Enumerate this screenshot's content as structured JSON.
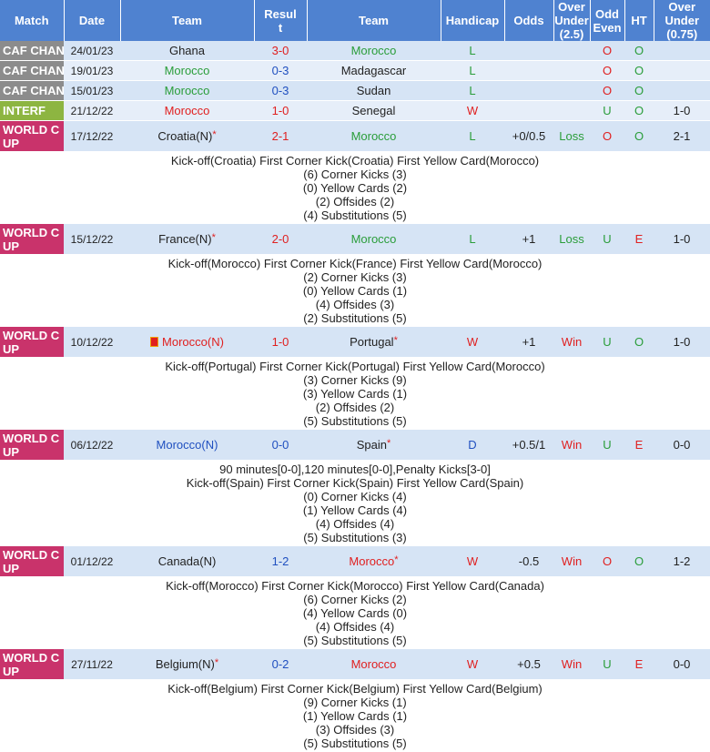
{
  "headers": [
    "Match",
    "Date",
    "Team",
    "Result",
    "Team",
    "Handicap",
    "Odds",
    "Over Under (2.5)",
    "Odd Even",
    "HT",
    "Over Under (0.75)"
  ],
  "header_lines": {
    "result": [
      "Resul",
      "t"
    ],
    "ou25": [
      "Over",
      "Under",
      "(2.5)"
    ],
    "oddeven": [
      "Odd",
      "Even"
    ],
    "ou075": [
      "Over",
      "Under",
      "(0.75)"
    ]
  },
  "colors": {
    "header": "#4f82d0",
    "caf": "#8c8c8c",
    "interf": "#8db541",
    "worldcup": "#c9336b",
    "win_red": "#e02020",
    "loss_green": "#2a9d3a"
  },
  "matches": [
    {
      "league": "CAF CHAN",
      "date": "24/01/23",
      "home": "Ghana",
      "score": "3-0",
      "away": "Morocco",
      "res": "L",
      "hc": "",
      "odds": "",
      "ou": "O",
      "oe": "O",
      "ht": "",
      "ou2": ""
    },
    {
      "league": "CAF CHAN",
      "date": "19/01/23",
      "home": "Morocco",
      "score": "0-3",
      "away": "Madagascar",
      "res": "L",
      "hc": "",
      "odds": "",
      "ou": "O",
      "oe": "O",
      "ht": "",
      "ou2": ""
    },
    {
      "league": "CAF CHAN",
      "date": "15/01/23",
      "home": "Morocco",
      "score": "0-3",
      "away": "Sudan",
      "res": "L",
      "hc": "",
      "odds": "",
      "ou": "O",
      "oe": "O",
      "ht": "",
      "ou2": ""
    },
    {
      "league": "INTERF",
      "date": "21/12/22",
      "home": "Morocco",
      "score": "1-0",
      "away": "Senegal",
      "res": "W",
      "hc": "",
      "odds": "",
      "ou": "U",
      "oe": "O",
      "ht": "1-0",
      "ou2": "O"
    },
    {
      "league": "WORLD C UP",
      "league_lines": [
        "WORLD C",
        "UP"
      ],
      "date": "17/12/22",
      "home": "Croatia(N)",
      "score": "2-1",
      "away": "Morocco",
      "res": "L",
      "hc": "+0/0.5",
      "odds": "Loss",
      "ou": "O",
      "oe": "O",
      "ht": "2-1",
      "ou2": "O",
      "details": [
        "Kick-off(Croatia)   First Corner Kick(Croatia)   First Yellow Card(Morocco)",
        "(6) Corner Kicks (3)",
        "(0) Yellow Cards (2)",
        "(2) Offsides (2)",
        "(4) Substitutions (5)"
      ]
    },
    {
      "league": "WORLD C UP",
      "league_lines": [
        "WORLD C",
        "UP"
      ],
      "date": "15/12/22",
      "home": "France(N)",
      "score": "2-0",
      "away": "Morocco",
      "res": "L",
      "hc": "+1",
      "odds": "Loss",
      "ou": "U",
      "oe": "E",
      "ht": "1-0",
      "ou2": "O",
      "details": [
        "Kick-off(Morocco)   First Corner Kick(France)   First Yellow Card(Morocco)",
        "(2) Corner Kicks (3)",
        "(0) Yellow Cards (1)",
        "(4) Offsides (3)",
        "(2) Substitutions (5)"
      ]
    },
    {
      "league": "WORLD C UP",
      "league_lines": [
        "WORLD C",
        "UP"
      ],
      "date": "10/12/22",
      "home": "Morocco(N)",
      "score": "1-0",
      "away": "Portugal",
      "res": "W",
      "hc": "+1",
      "odds": "Win",
      "ou": "U",
      "oe": "O",
      "ht": "1-0",
      "ou2": "O",
      "details": [
        "Kick-off(Portugal)   First Corner Kick(Portugal)   First Yellow Card(Morocco)",
        "(3) Corner Kicks (9)",
        "(3) Yellow Cards (1)",
        "(2) Offsides (2)",
        "(5) Substitutions (5)"
      ]
    },
    {
      "league": "WORLD C UP",
      "league_lines": [
        "WORLD C",
        "UP"
      ],
      "date": "06/12/22",
      "home": "Morocco(N)",
      "score": "0-0",
      "away": "Spain",
      "res": "D",
      "hc": "+0.5/1",
      "odds": "Win",
      "ou": "U",
      "oe": "E",
      "ht": "0-0",
      "ou2": "U",
      "details": [
        "90 minutes[0-0],120 minutes[0-0],Penalty Kicks[3-0]",
        "Kick-off(Spain)   First Corner Kick(Spain)   First Yellow Card(Spain)",
        "(0) Corner Kicks (4)",
        "(1) Yellow Cards (4)",
        "(4) Offsides (4)",
        "(5) Substitutions (3)"
      ]
    },
    {
      "league": "WORLD C UP",
      "league_lines": [
        "WORLD C",
        "UP"
      ],
      "date": "01/12/22",
      "home": "Canada(N)",
      "score": "1-2",
      "away": "Morocco",
      "res": "W",
      "hc": "-0.5",
      "odds": "Win",
      "ou": "O",
      "oe": "O",
      "ht": "1-2",
      "ou2": "O",
      "details": [
        "Kick-off(Morocco)   First Corner Kick(Morocco)   First Yellow Card(Canada)",
        "(6) Corner Kicks (2)",
        "(4) Yellow Cards (0)",
        "(4) Offsides (4)",
        "(5) Substitutions (5)"
      ]
    },
    {
      "league": "WORLD C UP",
      "league_lines": [
        "WORLD C",
        "UP"
      ],
      "date": "27/11/22",
      "home": "Belgium(N)",
      "score": "0-2",
      "away": "Morocco",
      "res": "W",
      "hc": "+0.5",
      "odds": "Win",
      "ou": "U",
      "oe": "E",
      "ht": "0-0",
      "ou2": "U",
      "details": [
        "Kick-off(Belgium)   First Corner Kick(Belgium)   First Yellow Card(Belgium)",
        "(9) Corner Kicks (1)",
        "(1) Yellow Cards (1)",
        "(3) Offsides (3)",
        "(5) Substitutions (5)"
      ]
    }
  ]
}
